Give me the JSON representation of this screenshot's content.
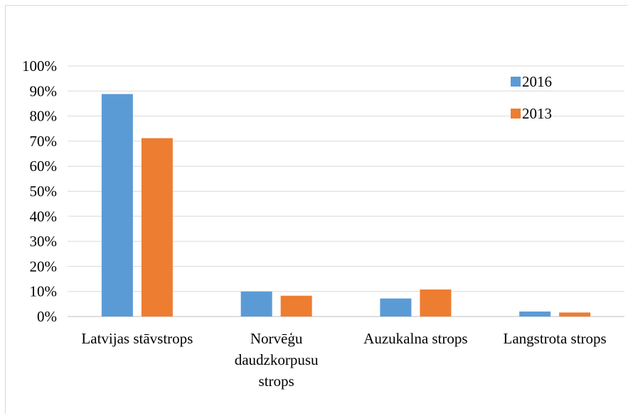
{
  "chart_data": {
    "type": "bar",
    "title": "",
    "xlabel": "",
    "ylabel": "",
    "categories": [
      [
        "Latvijas stāvstrops"
      ],
      [
        "Norvēģu",
        "daudzkorpusu",
        "strops"
      ],
      [
        "Auzukalna strops"
      ],
      [
        "Langstrota strops"
      ]
    ],
    "series": [
      {
        "name": "2016",
        "color": "#5b9bd5",
        "values": [
          88.8,
          10,
          7.2,
          2
        ]
      },
      {
        "name": "2013",
        "color": "#ed7d31",
        "values": [
          71.2,
          8.3,
          10.8,
          1.6
        ]
      }
    ],
    "ylim": [
      0,
      100
    ],
    "yticks": [
      "0%",
      "10%",
      "20%",
      "30%",
      "40%",
      "50%",
      "60%",
      "70%",
      "80%",
      "90%",
      "100%"
    ],
    "grid": true,
    "legend_position": "top-right"
  }
}
